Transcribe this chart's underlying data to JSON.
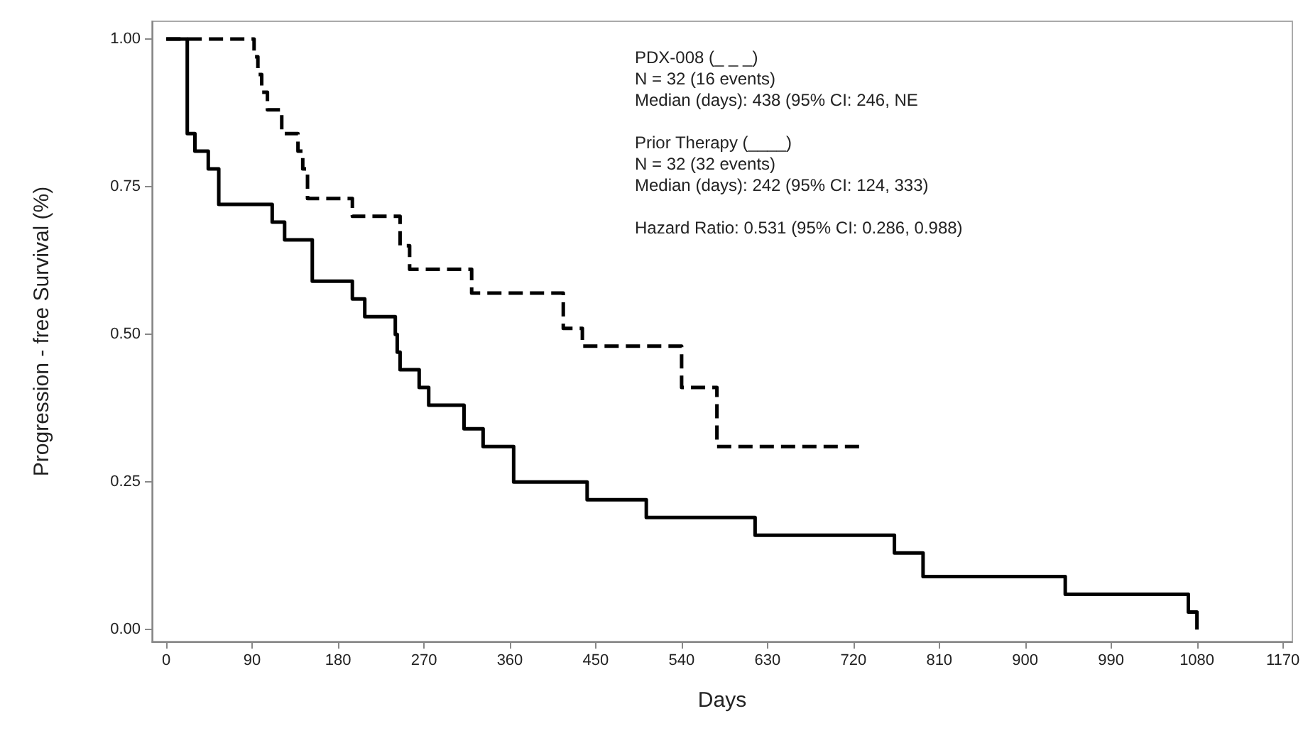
{
  "chart_data": {
    "type": "step",
    "xlabel": "Days",
    "ylabel": "Progression - free Survival (%)",
    "xlim": [
      -15,
      1180
    ],
    "xticks": [
      0,
      90,
      180,
      270,
      360,
      450,
      540,
      630,
      720,
      810,
      900,
      990,
      1080,
      1170
    ],
    "ylim": [
      -0.02,
      1.03
    ],
    "yticks": [
      {
        "value": 0,
        "label": "0.00"
      },
      {
        "value": 0.25,
        "label": "0.25"
      },
      {
        "value": 0.5,
        "label": "0.50"
      },
      {
        "value": 0.75,
        "label": "0.75"
      },
      {
        "value": 1,
        "label": "1.00"
      }
    ],
    "grid": false,
    "marker": "none",
    "series": [
      {
        "color": "#000000",
        "line_style": "dashed",
        "x": [
          0,
          86,
          92,
          96,
          100,
          106,
          121,
          138,
          143,
          148,
          195,
          245,
          255,
          320,
          416,
          436,
          540,
          577,
          729
        ],
        "values": [
          1,
          1,
          0.97,
          0.94,
          0.91,
          0.88,
          0.84,
          0.81,
          0.78,
          0.73,
          0.7,
          0.65,
          0.61,
          0.57,
          0.51,
          0.48,
          0.41,
          0.31,
          0.31
        ]
      },
      {
        "color": "#000000",
        "line_style": "solid",
        "x": [
          0,
          22,
          30,
          44,
          55,
          111,
          124,
          153,
          195,
          208,
          240,
          242,
          245,
          265,
          275,
          312,
          332,
          364,
          441,
          503,
          617,
          763,
          793,
          942,
          1071,
          1080
        ],
        "values": [
          1,
          0.84,
          0.81,
          0.78,
          0.72,
          0.69,
          0.66,
          0.59,
          0.56,
          0.53,
          0.5,
          0.47,
          0.44,
          0.41,
          0.38,
          0.34,
          0.31,
          0.25,
          0.22,
          0.19,
          0.16,
          0.13,
          0.09,
          0.06,
          0.03,
          0
        ]
      }
    ],
    "annotations": [
      "PDX-008 (_ _ _)\nN = 32 (16 events)\nMedian (days): 438 (95% CI: 246, NE",
      "Prior Therapy (____)\nN = 32 (32 events)\nMedian (days): 242 (95% CI: 124, 333)",
      "Hazard Ratio: 0.531 (95% CI: 0.286, 0.988)"
    ]
  }
}
